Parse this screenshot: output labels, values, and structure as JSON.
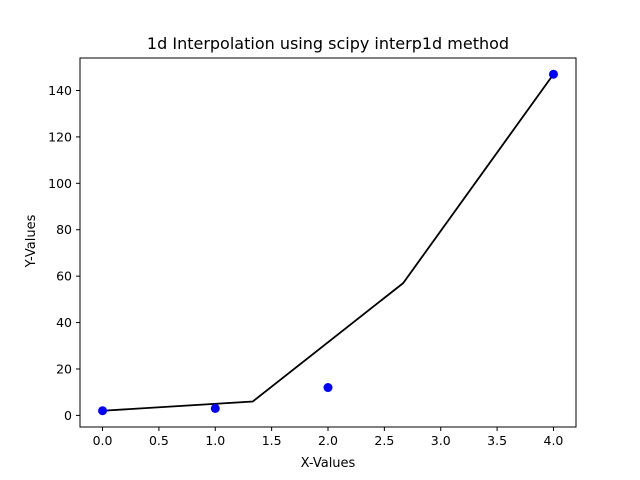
{
  "chart_data": {
    "type": "line",
    "title": "1d Interpolation using scipy interp1d method",
    "xlabel": "X-Values",
    "ylabel": "Y-Values",
    "xlim": [
      -0.2,
      4.2
    ],
    "ylim": [
      -5,
      154
    ],
    "xticks": [
      0.0,
      0.5,
      1.0,
      1.5,
      2.0,
      2.5,
      3.0,
      3.5,
      4.0
    ],
    "xtick_labels": [
      "0.0",
      "0.5",
      "1.0",
      "1.5",
      "2.0",
      "2.5",
      "3.0",
      "3.5",
      "4.0"
    ],
    "yticks": [
      0,
      20,
      40,
      60,
      80,
      100,
      120,
      140
    ],
    "ytick_labels": [
      "0",
      "20",
      "40",
      "60",
      "80",
      "100",
      "120",
      "140"
    ],
    "grid": false,
    "series": [
      {
        "kind": "scatter",
        "color": "#0000ff",
        "x": [
          0,
          1,
          2,
          4
        ],
        "y": [
          2,
          3,
          12,
          147
        ]
      },
      {
        "kind": "line",
        "color": "#000000",
        "x": [
          0,
          1.333,
          2.667,
          4
        ],
        "y": [
          2,
          6,
          57,
          147
        ]
      }
    ]
  }
}
